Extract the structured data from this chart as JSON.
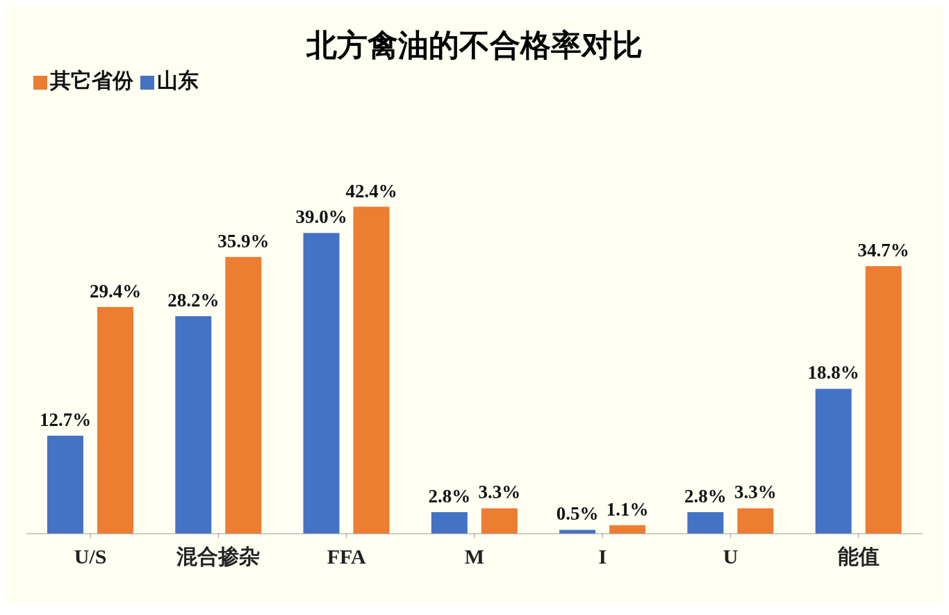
{
  "chart_data": {
    "type": "bar",
    "title": "北方禽油的不合格率对比",
    "categories": [
      "U/S",
      "混合掺杂",
      "FFA",
      "M",
      "I",
      "U",
      "能值"
    ],
    "legend": "top left",
    "series": [
      {
        "name": "山东",
        "color": "#4472c4",
        "values": [
          12.7,
          28.2,
          39.0,
          2.8,
          0.5,
          2.8,
          18.8
        ],
        "value_labels": [
          "12.7%",
          "28.2%",
          "39.0%",
          "2.8%",
          "0.5%",
          "2.8%",
          "18.8%"
        ]
      },
      {
        "name": "其它省份",
        "color": "#ed7d31",
        "values": [
          29.4,
          35.9,
          42.4,
          3.3,
          1.1,
          3.3,
          34.7
        ],
        "value_labels": [
          "29.4%",
          "35.9%",
          "42.4%",
          "3.3%",
          "1.1%",
          "3.3%",
          "34.7%"
        ]
      }
    ]
  }
}
